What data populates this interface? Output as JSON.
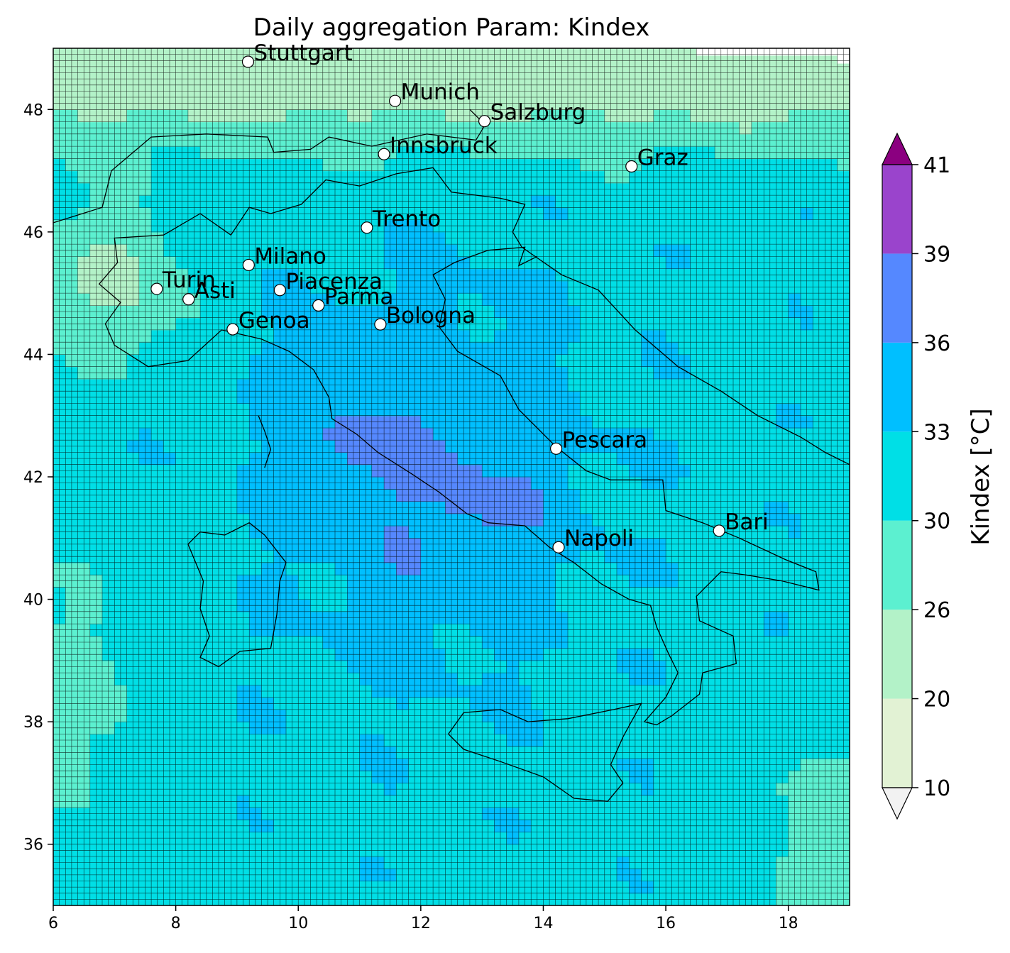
{
  "title": "Daily aggregation Param: Kindex",
  "map": {
    "lon_range": [
      6,
      19
    ],
    "lat_range": [
      35,
      49
    ],
    "x_ticks": [
      {
        "value": 6,
        "label": "6"
      },
      {
        "value": 8,
        "label": "8"
      },
      {
        "value": 10,
        "label": "10"
      },
      {
        "value": 12,
        "label": "12"
      },
      {
        "value": 14,
        "label": "14"
      },
      {
        "value": 16,
        "label": "16"
      },
      {
        "value": 18,
        "label": "18"
      }
    ],
    "y_ticks": [
      {
        "value": 36,
        "label": "36"
      },
      {
        "value": 38,
        "label": "38"
      },
      {
        "value": 40,
        "label": "40"
      },
      {
        "value": 42,
        "label": "42"
      },
      {
        "value": 44,
        "label": "44"
      },
      {
        "value": 46,
        "label": "46"
      },
      {
        "value": 48,
        "label": "48"
      }
    ],
    "grid_resolution_deg": 0.1,
    "cities": [
      {
        "name": "Stuttgart",
        "lon": 9.18,
        "lat": 48.78
      },
      {
        "name": "Munich",
        "lon": 11.58,
        "lat": 48.14
      },
      {
        "name": "Salzburg",
        "lon": 13.04,
        "lat": 47.81
      },
      {
        "name": "Innsbruck",
        "lon": 11.4,
        "lat": 47.27
      },
      {
        "name": "Graz",
        "lon": 15.44,
        "lat": 47.07
      },
      {
        "name": "Trento",
        "lon": 11.12,
        "lat": 46.07
      },
      {
        "name": "Milano",
        "lon": 9.19,
        "lat": 45.46
      },
      {
        "name": "Turin",
        "lon": 7.69,
        "lat": 45.07
      },
      {
        "name": "Asti",
        "lon": 8.21,
        "lat": 44.9
      },
      {
        "name": "Piacenza",
        "lon": 9.7,
        "lat": 45.05
      },
      {
        "name": "Parma",
        "lon": 10.33,
        "lat": 44.8
      },
      {
        "name": "Genoa",
        "lon": 8.93,
        "lat": 44.41
      },
      {
        "name": "Bologna",
        "lon": 11.34,
        "lat": 44.49
      },
      {
        "name": "Pescara",
        "lon": 14.21,
        "lat": 42.46
      },
      {
        "name": "Bari",
        "lon": 16.87,
        "lat": 41.12
      },
      {
        "name": "Napoli",
        "lon": 14.25,
        "lat": 40.85
      }
    ]
  },
  "colorbar": {
    "label": "Kindex [°C]",
    "ticks": [
      {
        "value": 10,
        "label": "10"
      },
      {
        "value": 20,
        "label": "20"
      },
      {
        "value": 26,
        "label": "26"
      },
      {
        "value": 30,
        "label": "30"
      },
      {
        "value": 33,
        "label": "33"
      },
      {
        "value": 36,
        "label": "36"
      },
      {
        "value": 39,
        "label": "39"
      },
      {
        "value": 41,
        "label": "41"
      }
    ],
    "bins": [
      {
        "from": 10,
        "to": 20,
        "color": "#e2f2d4"
      },
      {
        "from": 20,
        "to": 26,
        "color": "#b3f2c8"
      },
      {
        "from": 26,
        "to": 30,
        "color": "#5cf0d0"
      },
      {
        "from": 30,
        "to": 33,
        "color": "#00dfe6"
      },
      {
        "from": 33,
        "to": 36,
        "color": "#00bfff"
      },
      {
        "from": 36,
        "to": 39,
        "color": "#5588ff"
      },
      {
        "from": 39,
        "to": 41,
        "color": "#9a44cc"
      }
    ],
    "under_color": "#f2f2f2",
    "over_color": "#8b0080",
    "extend": "both"
  }
}
